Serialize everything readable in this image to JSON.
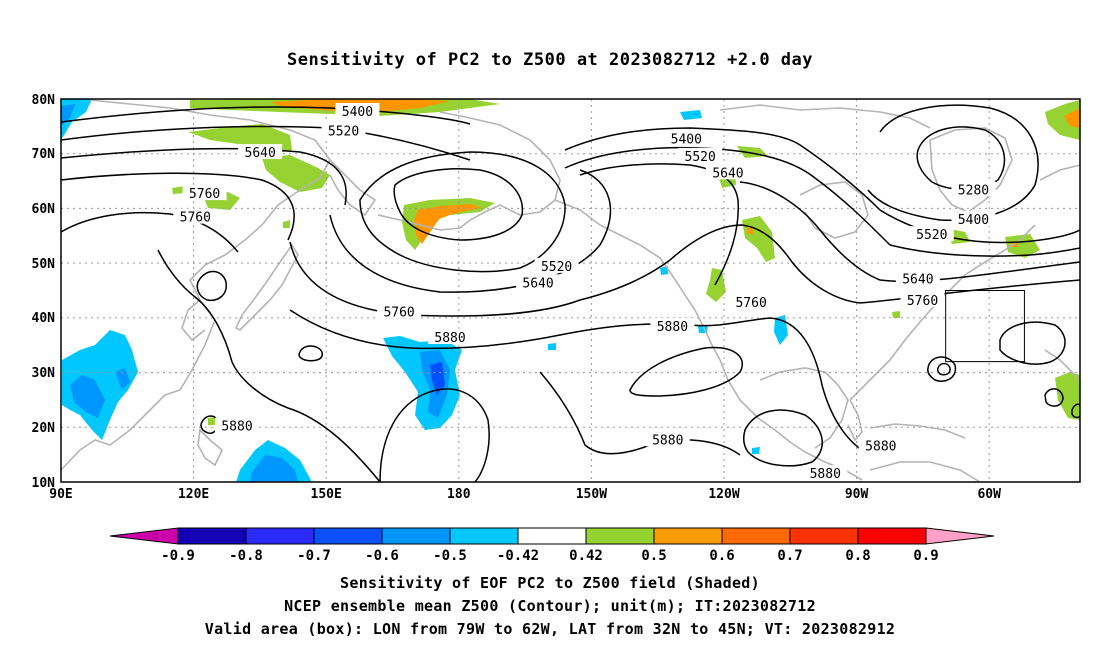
{
  "title": "Sensitivity of PC2 to Z500 at 2023082712 +2.0 day",
  "map": {
    "lat_labels": [
      "80N",
      "70N",
      "60N",
      "50N",
      "40N",
      "30N",
      "20N",
      "10N"
    ],
    "lon_labels": [
      "90E",
      "120E",
      "150E",
      "180",
      "150W",
      "120W",
      "90W",
      "60W"
    ],
    "contour_labels": [
      {
        "text": "5400",
        "lon": 154,
        "lat": 77.8
      },
      {
        "text": "5520",
        "lon": 151,
        "lat": 74.2
      },
      {
        "text": "5640",
        "lon": 133,
        "lat": 70.3
      },
      {
        "text": "5760",
        "lon": 121,
        "lat": 62.8
      },
      {
        "text": "5760",
        "lon": 119,
        "lat": 58.5
      },
      {
        "text": "5400",
        "lon": -135,
        "lat": 72.8
      },
      {
        "text": "5520",
        "lon": -132,
        "lat": 69.6
      },
      {
        "text": "5640",
        "lon": -126,
        "lat": 66.6
      },
      {
        "text": "5280",
        "lon": -73,
        "lat": 63.5
      },
      {
        "text": "5400",
        "lon": -73,
        "lat": 58.1
      },
      {
        "text": "5520",
        "lon": -82,
        "lat": 55.3
      },
      {
        "text": "5520",
        "lon": -163,
        "lat": 49.5
      },
      {
        "text": "5640",
        "lon": -167,
        "lat": 46.5
      },
      {
        "text": "5640",
        "lon": -85,
        "lat": 47.2
      },
      {
        "text": "5760",
        "lon": -84,
        "lat": 43.3
      },
      {
        "text": "5760",
        "lon": -121,
        "lat": 42.9
      },
      {
        "text": "5760",
        "lon": 163,
        "lat": 41.2
      },
      {
        "text": "5880",
        "lon": 174,
        "lat": 36.5
      },
      {
        "text": "5880",
        "lon": -138,
        "lat": 38.5
      },
      {
        "text": "5880",
        "lon": 128,
        "lat": 20.3
      },
      {
        "text": "5880",
        "lon": -139,
        "lat": 17.8
      },
      {
        "text": "5880",
        "lon": -93,
        "lat": 16.7
      },
      {
        "text": "5880",
        "lon": -105,
        "lat": 11.6
      }
    ],
    "valid_box": {
      "lon_west": -79,
      "lon_east": -62,
      "lat_south": 32,
      "lat_north": 45
    },
    "colors": {
      "contour": "#000000",
      "coast": "#b4b4b4",
      "grid": "#9a9a9a",
      "neg_light": "#00c8ff",
      "neg_mid": "#0096ff",
      "neg_dark": "#0050ff",
      "pos_green": "#96d232",
      "pos_orange": "#ff9600"
    }
  },
  "colorbar": {
    "labels": [
      "-0.9",
      "-0.8",
      "-0.7",
      "-0.6",
      "-0.5",
      "-0.42",
      "0.42",
      "0.5",
      "0.6",
      "0.7",
      "0.8",
      "0.9"
    ],
    "colors": [
      "#cc00a8",
      "#1400b4",
      "#2a2afa",
      "#0a50ff",
      "#0096ff",
      "#00c8ff",
      "#ffffff",
      "#96d232",
      "#ff9a00",
      "#ff6a00",
      "#ff3200",
      "#ff0000",
      "#ffa0c8"
    ]
  },
  "footer": {
    "line1": "Sensitivity of EOF PC2 to Z500 field (Shaded)",
    "line2": "NCEP ensemble mean Z500 (Contour); unit(m); IT:2023082712",
    "line3": "Valid area (box): LON from 79W to 62W, LAT from 32N to 45N; VT: 2023082912"
  }
}
